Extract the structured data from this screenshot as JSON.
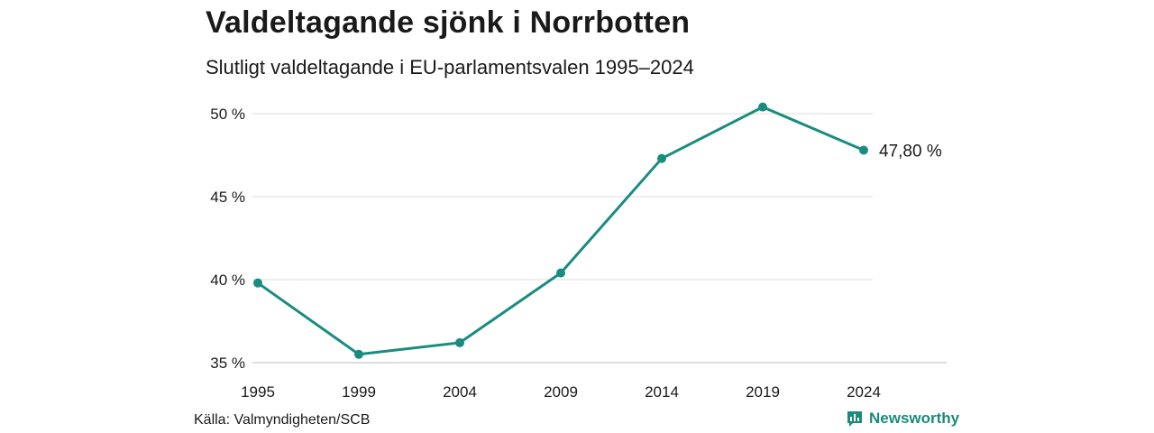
{
  "title": "Valdeltagande sjönk i Norrbotten",
  "subtitle": "Slutligt valdeltagande i EU-parlamentsvalen 1995–2024",
  "source": "Källa: Valmyndigheten/SCB",
  "brand": {
    "name": "Newsworthy",
    "icon": "newsworthy-logo-icon",
    "color": "#1c8a7c"
  },
  "chart_data": {
    "type": "line",
    "title": "Valdeltagande sjönk i Norrbotten",
    "subtitle": "Slutligt valdeltagande i EU-parlamentsvalen 1995–2024",
    "xlabel": "",
    "ylabel": "",
    "x": [
      "1995",
      "1999",
      "2004",
      "2009",
      "2014",
      "2019",
      "2024"
    ],
    "series": [
      {
        "values": [
          39.8,
          35.5,
          36.2,
          40.4,
          47.3,
          50.4,
          47.8
        ],
        "color": "#1a8c7f"
      }
    ],
    "yticks": [
      {
        "value": 35,
        "label": "35 %"
      },
      {
        "value": 40,
        "label": "40 %"
      },
      {
        "value": 45,
        "label": "45 %"
      },
      {
        "value": 50,
        "label": "50 %"
      }
    ],
    "ylim": [
      35,
      50
    ],
    "end_label": "47,80 %",
    "grid": true,
    "legend": "none"
  }
}
